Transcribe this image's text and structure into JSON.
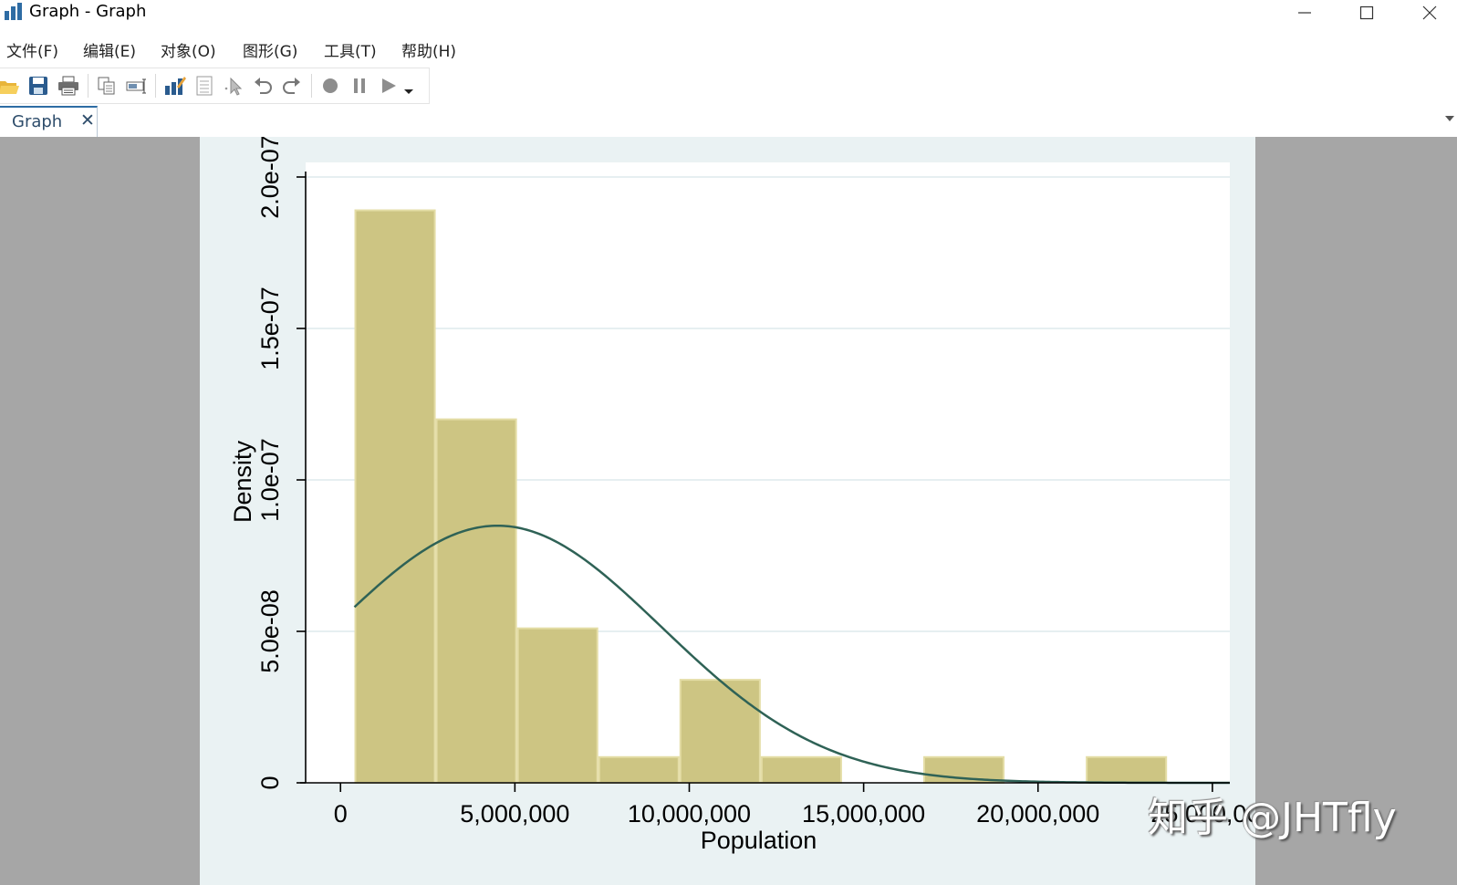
{
  "window": {
    "title": "Graph - Graph"
  },
  "menu": [
    "文件(F)",
    "编辑(E)",
    "对象(O)",
    "图形(G)",
    "工具(T)",
    "帮助(H)"
  ],
  "toolbar": {
    "icons": [
      "open-icon",
      "save-icon",
      "print-icon",
      "copy-icon",
      "rename-icon",
      "graph-editor-icon",
      "data-editor-icon",
      "pointer-icon",
      "undo-icon",
      "redo-icon",
      "record-icon",
      "pause-icon",
      "play-icon",
      "dropdown-icon"
    ]
  },
  "tab": {
    "label": "Graph",
    "close": "✕"
  },
  "watermark": "知乎 @JHTfly",
  "chart_data": {
    "type": "histogram",
    "xlabel": "Population",
    "ylabel": "Density",
    "xlim": [
      -1000000,
      25500000
    ],
    "ylim": [
      0,
      2e-07
    ],
    "xticks": [
      0,
      5000000,
      10000000,
      15000000,
      20000000,
      25000000
    ],
    "xtick_labels": [
      "0",
      "5,000,000",
      "10,000,000",
      "15,000,000",
      "20,000,000",
      "25,000,000"
    ],
    "yticks": [
      0,
      5e-08,
      1e-07,
      1.5e-07,
      2e-07
    ],
    "ytick_labels": [
      "0",
      "5.0e-08",
      "1.0e-07",
      "1.5e-07",
      "2.0e-07"
    ],
    "bins": [
      {
        "x0": 400000,
        "x1": 2730000,
        "density": 1.89e-07
      },
      {
        "x0": 2730000,
        "x1": 5060000,
        "density": 1.2e-07
      },
      {
        "x0": 5060000,
        "x1": 7390000,
        "density": 5.1e-08
      },
      {
        "x0": 7390000,
        "x1": 9720000,
        "density": 8.5e-09
      },
      {
        "x0": 9720000,
        "x1": 12050000,
        "density": 3.4e-08
      },
      {
        "x0": 12050000,
        "x1": 14380000,
        "density": 8.5e-09
      },
      {
        "x0": 14380000,
        "x1": 16710000,
        "density": 0
      },
      {
        "x0": 16710000,
        "x1": 19040000,
        "density": 8.5e-09
      },
      {
        "x0": 19040000,
        "x1": 21370000,
        "density": 0
      },
      {
        "x0": 21370000,
        "x1": 23700000,
        "density": 8.5e-09
      }
    ],
    "normal_curve": {
      "mean": 4500000,
      "sd": 4700000,
      "x_start": 400000,
      "x_end": 25500000
    },
    "colors": {
      "bar": "#cdc583",
      "bar_edge": "#e4dda6",
      "curve": "#2f6256",
      "plot_bg": "#ffffff",
      "graph_bg": "#eaf2f3",
      "grid": "#e6eff1"
    }
  }
}
